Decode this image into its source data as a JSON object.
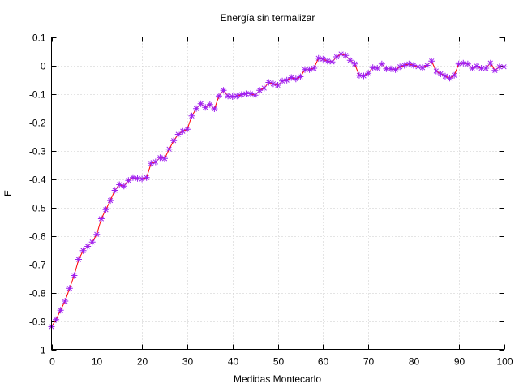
{
  "chart_data": {
    "type": "line",
    "title": "Energía sin termalizar",
    "xlabel": "Medidas Montecarlo",
    "ylabel": "E",
    "xlim": [
      0,
      100
    ],
    "ylim": [
      -1,
      0.1
    ],
    "xticks": [
      0,
      10,
      20,
      30,
      40,
      50,
      60,
      70,
      80,
      90,
      100
    ],
    "xtick_labels": [
      "0",
      "10",
      "20",
      "30",
      "40",
      "50",
      "60",
      "70",
      "80",
      "90",
      "100"
    ],
    "yticks": [
      0.1,
      0,
      -0.1,
      -0.2,
      -0.3,
      -0.4,
      -0.5,
      -0.6,
      -0.7,
      -0.8,
      -0.9,
      -1
    ],
    "ytick_labels": [
      "0.1",
      "0",
      "-0.1",
      "-0.2",
      "-0.3",
      "-0.4",
      "-0.5",
      "-0.6",
      "-0.7",
      "-0.8",
      "-0.9",
      "-1"
    ],
    "grid": true,
    "line_color": "#ff0000",
    "marker_color": "#a020f0",
    "marker": "star",
    "series": [
      {
        "x": [
          0,
          1,
          2,
          3,
          4,
          5,
          6,
          7,
          8,
          9,
          10,
          11,
          12,
          13,
          14,
          15,
          16,
          17,
          18,
          19,
          20,
          21,
          22,
          23,
          24,
          25,
          26,
          27,
          28,
          29,
          30,
          31,
          32,
          33,
          34,
          35,
          36,
          37,
          38,
          39,
          40,
          41,
          42,
          43,
          44,
          45,
          46,
          47,
          48,
          49,
          50,
          51,
          52,
          53,
          54,
          55,
          56,
          57,
          58,
          59,
          60,
          61,
          62,
          63,
          64,
          65,
          66,
          67,
          68,
          69,
          70,
          71,
          72,
          73,
          74,
          75,
          76,
          77,
          78,
          79,
          80,
          81,
          82,
          83,
          84,
          85,
          86,
          87,
          88,
          89,
          90,
          91,
          92,
          93,
          94,
          95,
          96,
          97,
          98,
          99,
          100
        ],
        "values": [
          -0.92,
          -0.895,
          -0.862,
          -0.83,
          -0.785,
          -0.74,
          -0.683,
          -0.652,
          -0.637,
          -0.622,
          -0.595,
          -0.54,
          -0.508,
          -0.476,
          -0.44,
          -0.42,
          -0.425,
          -0.405,
          -0.395,
          -0.398,
          -0.4,
          -0.395,
          -0.345,
          -0.34,
          -0.325,
          -0.328,
          -0.295,
          -0.265,
          -0.243,
          -0.232,
          -0.225,
          -0.178,
          -0.152,
          -0.135,
          -0.148,
          -0.138,
          -0.153,
          -0.108,
          -0.088,
          -0.108,
          -0.11,
          -0.108,
          -0.103,
          -0.1,
          -0.1,
          -0.105,
          -0.088,
          -0.08,
          -0.06,
          -0.065,
          -0.07,
          -0.055,
          -0.052,
          -0.043,
          -0.048,
          -0.04,
          -0.015,
          -0.015,
          -0.01,
          0.025,
          0.022,
          0.015,
          0.012,
          0.03,
          0.04,
          0.035,
          0.018,
          0.005,
          -0.035,
          -0.037,
          -0.028,
          -0.008,
          -0.01,
          0.005,
          -0.012,
          -0.012,
          -0.015,
          -0.005,
          0.0,
          0.005,
          0.0,
          -0.005,
          -0.008,
          0.0,
          0.015,
          -0.02,
          -0.03,
          -0.038,
          -0.045,
          -0.035,
          0.005,
          0.008,
          0.005,
          -0.01,
          -0.003,
          -0.01,
          -0.01,
          0.008,
          -0.018,
          -0.005,
          -0.005
        ]
      }
    ]
  }
}
